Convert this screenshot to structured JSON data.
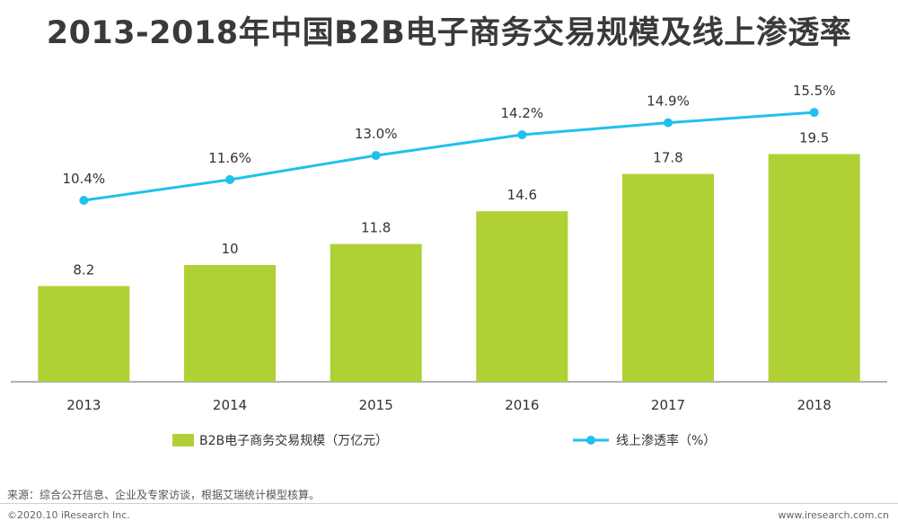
{
  "title": "2013-2018年中国B2B电子商务交易规模及线上渗透率",
  "colors": {
    "bar": "#b0d136",
    "line": "#1fc1ec",
    "axis": "#666666",
    "label": "#333333"
  },
  "chart_data": {
    "type": "bar",
    "categories": [
      "2013",
      "2014",
      "2015",
      "2016",
      "2017",
      "2018"
    ],
    "series": [
      {
        "name": "B2B电子商务交易规模（万亿元）",
        "type": "bar",
        "values": [
          8.2,
          10,
          11.8,
          14.6,
          17.8,
          19.5
        ],
        "labels": [
          "8.2",
          "10",
          "11.8",
          "14.6",
          "17.8",
          "19.5"
        ]
      },
      {
        "name": "线上渗透率（%）",
        "type": "line",
        "values": [
          10.4,
          11.6,
          13.0,
          14.2,
          14.9,
          15.5
        ],
        "labels": [
          "10.4%",
          "11.6%",
          "13.0%",
          "14.2%",
          "14.9%",
          "15.5%"
        ]
      }
    ],
    "legend_position": "bottom",
    "grid": false
  },
  "footer": {
    "source": "来源：综合公开信息、企业及专家访谈，根据艾瑞统计模型核算。",
    "copyright": "©2020.10 iResearch Inc.",
    "url": "www.iresearch.com.cn"
  }
}
